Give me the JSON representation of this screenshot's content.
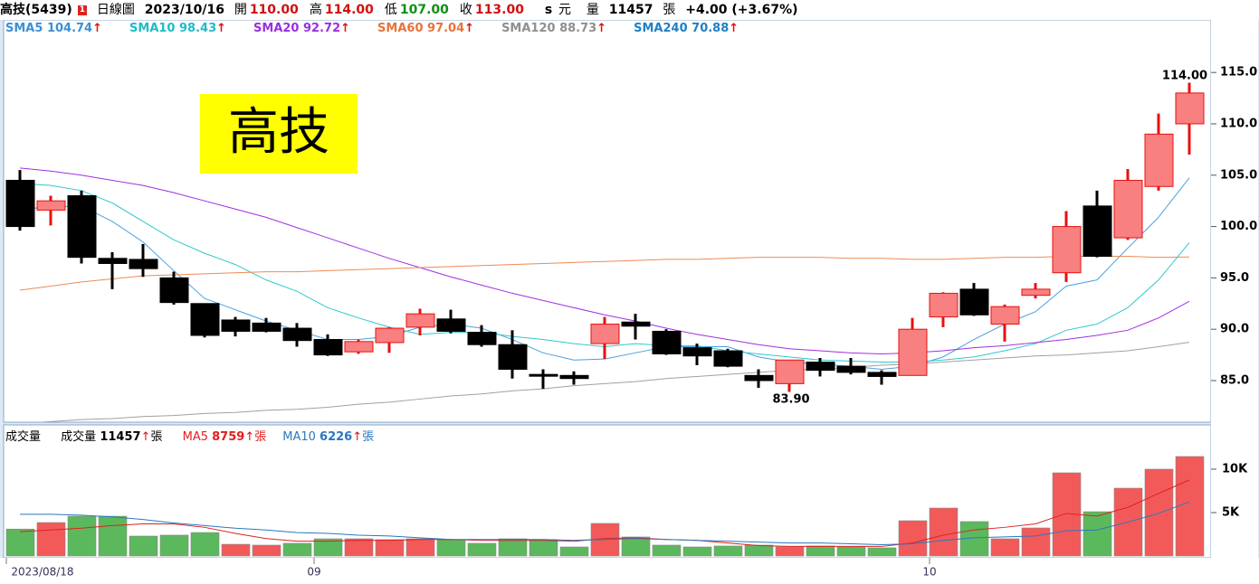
{
  "header": {
    "name": "高技(5439)",
    "badge": "1",
    "period": "日線圖",
    "date": "2023/10/16",
    "quotes": [
      {
        "label": "開",
        "value": "110.00",
        "color": "#d01010"
      },
      {
        "label": "高",
        "value": "114.00",
        "color": "#d01010"
      },
      {
        "label": "低",
        "value": "107.00",
        "color": "#109010"
      },
      {
        "label": "收",
        "value": "113.00",
        "color": "#d01010"
      }
    ],
    "currency_mark": "s",
    "currency": "元",
    "volume_label": "量",
    "volume": "11457",
    "volume_unit": "張",
    "change": "+4.00 (+3.67%)"
  },
  "chart_data": [
    {
      "type": "candlestick",
      "legend_arrow": "↑",
      "stamp": "高技",
      "annotations": [
        {
          "text": "114.00"
        },
        {
          "text": "83.90"
        }
      ],
      "up_color": "#f88080",
      "up_line": "#e81010",
      "down_color": "#000000",
      "open": [
        104.5,
        101.6,
        103.0,
        96.9,
        96.8,
        95.0,
        92.5,
        90.9,
        90.6,
        90.1,
        89.0,
        87.8,
        88.7,
        90.2,
        91.0,
        89.7,
        88.5,
        85.6,
        85.5,
        88.6,
        90.7,
        89.8,
        88.2,
        87.9,
        85.5,
        84.7,
        86.8,
        86.4,
        85.8,
        85.5,
        91.2,
        93.9,
        90.5,
        93.3,
        95.5,
        102.0,
        98.9,
        103.9,
        110.0
      ],
      "high": [
        105.5,
        103.0,
        103.5,
        97.5,
        98.3,
        95.6,
        92.5,
        91.2,
        91.1,
        90.6,
        89.5,
        89.0,
        90.2,
        92.0,
        91.9,
        90.4,
        89.9,
        86.1,
        85.9,
        91.2,
        91.5,
        90.0,
        88.6,
        88.1,
        86.1,
        87.0,
        87.2,
        87.2,
        86.0,
        91.1,
        93.6,
        94.5,
        92.4,
        94.5,
        101.5,
        103.5,
        105.6,
        111.0,
        114.0
      ],
      "low": [
        99.6,
        100.1,
        96.4,
        93.9,
        95.1,
        92.4,
        89.2,
        89.3,
        89.7,
        88.3,
        87.4,
        87.6,
        87.7,
        89.4,
        89.6,
        88.3,
        85.2,
        84.2,
        84.6,
        87.1,
        89.0,
        87.5,
        86.5,
        86.3,
        84.3,
        83.9,
        85.4,
        85.6,
        84.6,
        85.5,
        90.2,
        91.3,
        88.8,
        93.0,
        94.6,
        97.0,
        98.7,
        103.5,
        107.0
      ],
      "close": [
        100.0,
        102.5,
        97.0,
        96.4,
        95.9,
        92.6,
        89.4,
        89.8,
        89.8,
        88.9,
        87.5,
        88.8,
        90.1,
        91.5,
        89.8,
        88.5,
        86.1,
        85.6,
        85.2,
        90.5,
        90.3,
        87.6,
        87.4,
        86.4,
        85.0,
        87.0,
        86.0,
        85.8,
        85.4,
        90.0,
        93.5,
        91.4,
        92.2,
        93.9,
        100.0,
        97.1,
        104.5,
        109.0,
        113.0
      ],
      "ylim": [
        80.95,
        120.12
      ],
      "yticks": [
        {
          "value": 85,
          "label": "85.0"
        },
        {
          "value": 90,
          "label": "90.0"
        },
        {
          "value": 95,
          "label": "95.0"
        },
        {
          "value": 100,
          "label": "100.0"
        },
        {
          "value": 105,
          "label": "105.0"
        },
        {
          "value": 110,
          "label": "110.0"
        },
        {
          "value": 115,
          "label": "115.0"
        }
      ],
      "series": [
        {
          "name": "SMA5",
          "last": 104.74,
          "color": "#3b8fd4",
          "line_color": "#4aa0e0",
          "values": [
            101.7,
            101.9,
            102.0,
            100.5,
            98.5,
            95.7,
            93.0,
            91.9,
            90.8,
            89.9,
            89.0,
            89.0,
            89.3,
            90.2,
            90.5,
            90.1,
            89.0,
            87.7,
            87.0,
            87.1,
            87.7,
            88.3,
            88.3,
            88.3,
            87.3,
            86.8,
            86.6,
            86.4,
            86.1,
            86.4,
            87.3,
            89.0,
            90.5,
            91.7,
            94.2,
            94.8,
            97.9,
            100.9,
            104.74
          ]
        },
        {
          "name": "SMA10",
          "last": 98.43,
          "color": "#1fbcc6",
          "line_color": "#30c8cc",
          "values": [
            104.2,
            104.0,
            103.5,
            102.3,
            100.5,
            98.7,
            97.4,
            96.3,
            94.8,
            93.7,
            92.1,
            91.1,
            90.2,
            89.5,
            89.7,
            89.7,
            89.3,
            89.0,
            88.6,
            88.3,
            88.6,
            88.4,
            88.4,
            87.9,
            87.6,
            87.3,
            87.0,
            86.9,
            86.8,
            86.8,
            87.0,
            87.3,
            87.9,
            88.6,
            89.9,
            90.5,
            92.1,
            94.8,
            98.43
          ]
        },
        {
          "name": "SMA20",
          "last": 92.72,
          "color": "#9b2fe0",
          "line_color": "#a030e0",
          "values": [
            105.7,
            105.4,
            105.0,
            104.5,
            104.0,
            103.3,
            102.5,
            101.7,
            100.9,
            99.9,
            98.9,
            97.9,
            96.9,
            96.0,
            95.1,
            94.3,
            93.5,
            92.8,
            92.1,
            91.4,
            90.8,
            90.1,
            89.5,
            89.0,
            88.5,
            88.1,
            87.9,
            87.7,
            87.6,
            87.7,
            87.9,
            88.2,
            88.4,
            88.7,
            89.0,
            89.4,
            89.9,
            91.1,
            92.72
          ]
        },
        {
          "name": "SMA60",
          "last": 97.04,
          "color": "#e8733a",
          "line_color": "#ee8a55",
          "values": [
            93.8,
            94.2,
            94.6,
            94.9,
            95.2,
            95.3,
            95.4,
            95.5,
            95.6,
            95.6,
            95.7,
            95.8,
            95.9,
            96.0,
            96.1,
            96.2,
            96.3,
            96.4,
            96.5,
            96.6,
            96.7,
            96.8,
            96.8,
            96.9,
            97.0,
            97.0,
            97.0,
            96.9,
            96.9,
            96.8,
            96.8,
            96.9,
            97.0,
            97.0,
            97.1,
            97.1,
            97.1,
            97.0,
            97.04
          ]
        },
        {
          "name": "SMA120",
          "last": 88.73,
          "color": "#8f8f8f",
          "line_color": "#a0a0a0",
          "values": [
            80.8,
            81.0,
            81.2,
            81.3,
            81.5,
            81.6,
            81.8,
            81.9,
            82.1,
            82.2,
            82.4,
            82.7,
            82.9,
            83.2,
            83.5,
            83.7,
            84.0,
            84.2,
            84.5,
            84.7,
            84.9,
            85.2,
            85.4,
            85.6,
            85.8,
            86.0,
            86.1,
            86.3,
            86.5,
            86.6,
            86.8,
            87.0,
            87.2,
            87.4,
            87.5,
            87.7,
            87.9,
            88.3,
            88.73
          ]
        },
        {
          "name": "SMA240",
          "last": 70.88,
          "color": "#1f80c4"
        }
      ]
    },
    {
      "type": "volume",
      "title": "成交量",
      "label": "成交量",
      "current": 11457,
      "unit": "張",
      "legend_arrow": "↑",
      "categories": [
        "2023/08/18",
        null,
        null,
        null,
        null,
        null,
        null,
        null,
        null,
        null,
        "09",
        null,
        null,
        null,
        null,
        null,
        null,
        null,
        null,
        null,
        null,
        null,
        null,
        null,
        null,
        null,
        null,
        null,
        null,
        null,
        "10",
        null,
        null,
        null,
        null,
        null,
        null,
        null,
        null
      ],
      "values": [
        3100,
        3850,
        4580,
        4580,
        2290,
        2400,
        2700,
        1350,
        1250,
        1460,
        1980,
        1980,
        1880,
        1980,
        1880,
        1460,
        1980,
        1880,
        1040,
        3750,
        2190,
        1250,
        1040,
        1150,
        1250,
        1040,
        1150,
        1040,
        940,
        4060,
        5520,
        3960,
        1980,
        3230,
        9580,
        5100,
        7810,
        10000,
        11457
      ],
      "colors": [
        "#5cb85c",
        "#f25a5a",
        "#5cb85c",
        "#5cb85c",
        "#5cb85c",
        "#5cb85c",
        "#5cb85c",
        "#f25a5a",
        "#f25a5a",
        "#5cb85c",
        "#5cb85c",
        "#f25a5a",
        "#f25a5a",
        "#f25a5a",
        "#5cb85c",
        "#5cb85c",
        "#5cb85c",
        "#5cb85c",
        "#5cb85c",
        "#f25a5a",
        "#5cb85c",
        "#5cb85c",
        "#5cb85c",
        "#5cb85c",
        "#5cb85c",
        "#f25a5a",
        "#5cb85c",
        "#5cb85c",
        "#5cb85c",
        "#f25a5a",
        "#f25a5a",
        "#5cb85c",
        "#f25a5a",
        "#f25a5a",
        "#f25a5a",
        "#5cb85c",
        "#f25a5a",
        "#f25a5a",
        "#f25a5a"
      ],
      "ylim": [
        0,
        15100
      ],
      "yticks": [
        {
          "value": 5000,
          "label": "5K"
        },
        {
          "value": 10000,
          "label": "10K"
        }
      ],
      "series": [
        {
          "name": "MA5",
          "last": 8759,
          "color": "#e02020",
          "values": [
            2800,
            3000,
            3200,
            3500,
            3700,
            3700,
            3300,
            2600,
            2000,
            1700,
            1700,
            1800,
            1800,
            1900,
            1900,
            1800,
            1800,
            1800,
            1700,
            2000,
            2100,
            1900,
            1800,
            1500,
            1200,
            1100,
            1100,
            1100,
            1100,
            1500,
            2400,
            3000,
            3300,
            3700,
            4900,
            4600,
            5600,
            7200,
            8759
          ]
        },
        {
          "name": "MA10",
          "last": 6226,
          "color": "#2a78c0",
          "values": [
            4800,
            4800,
            4700,
            4500,
            4200,
            3800,
            3500,
            3200,
            3000,
            2700,
            2600,
            2400,
            2300,
            2100,
            1900,
            1900,
            1900,
            1900,
            1800,
            1900,
            2000,
            1900,
            1800,
            1700,
            1600,
            1500,
            1500,
            1400,
            1300,
            1400,
            1800,
            2100,
            2200,
            2300,
            2900,
            3000,
            3900,
            4900,
            6226
          ]
        }
      ]
    }
  ]
}
